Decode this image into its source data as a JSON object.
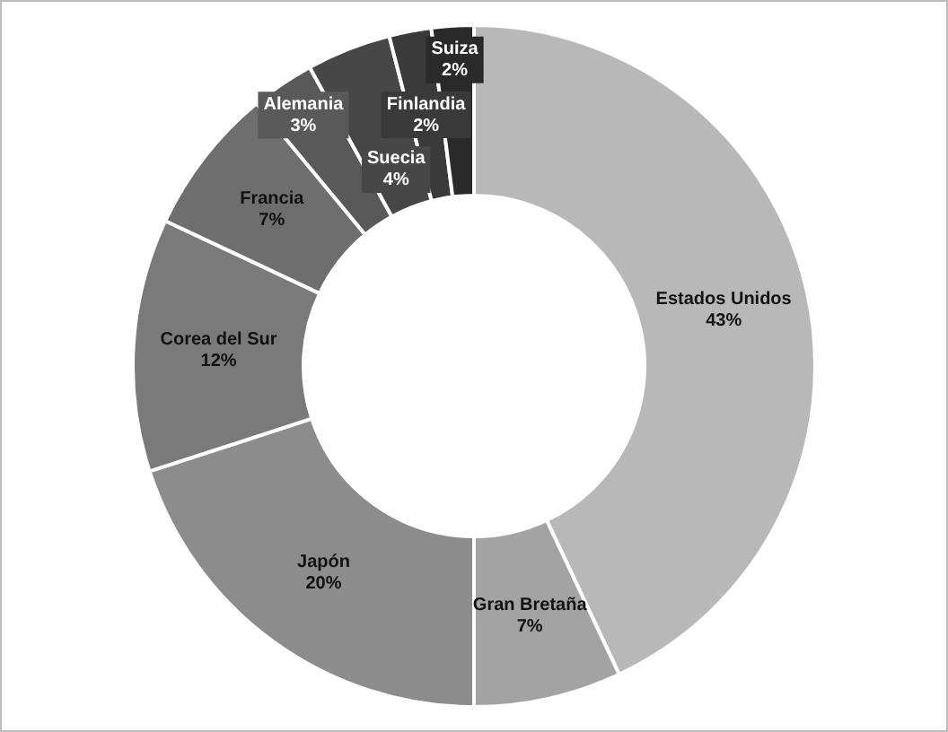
{
  "chart_data": {
    "type": "donut",
    "categories": [
      "Estados Unidos",
      "Gran Bretaña",
      "Japón",
      "Corea del Sur",
      "Francia",
      "Alemania",
      "Suecia",
      "Finlandia",
      "Suiza"
    ],
    "values": [
      43,
      7,
      20,
      12,
      7,
      3,
      4,
      2,
      2
    ],
    "value_labels": [
      "43%",
      "7%",
      "20%",
      "12%",
      "7%",
      "3%",
      "4%",
      "2%",
      "2%"
    ],
    "colors": [
      "#b8b8b8",
      "#a3a3a3",
      "#8c8c8c",
      "#7a7a7a",
      "#6e6e6e",
      "#595959",
      "#474747",
      "#3a3a3a",
      "#2a2a2a"
    ],
    "legend": false
  }
}
